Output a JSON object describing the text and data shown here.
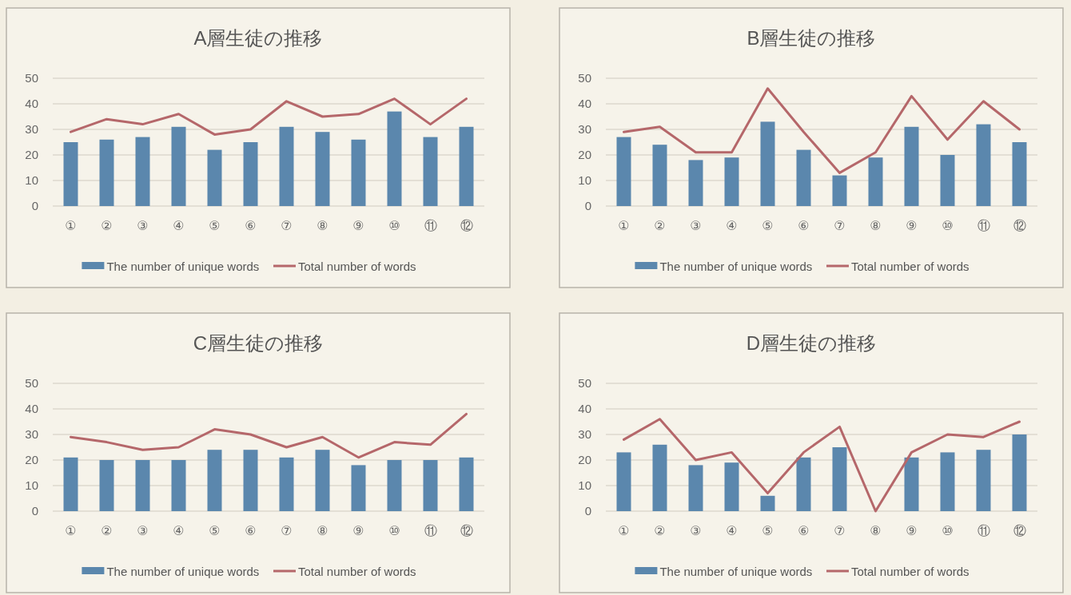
{
  "chart_data": [
    {
      "type": "bar",
      "title": "A層生徒の推移",
      "categories": [
        "①",
        "②",
        "③",
        "④",
        "⑤",
        "⑥",
        "⑦",
        "⑧",
        "⑨",
        "⑩",
        "⑪",
        "⑫"
      ],
      "series": [
        {
          "name": "The number of unique words",
          "color": "#5b87ad",
          "values": [
            25,
            26,
            27,
            31,
            22,
            25,
            31,
            29,
            26,
            37,
            27,
            31
          ]
        },
        {
          "name": "Total number of words",
          "type": "line",
          "color": "#b5676a",
          "values": [
            29,
            34,
            32,
            36,
            28,
            30,
            41,
            35,
            36,
            42,
            32,
            42
          ]
        }
      ],
      "ylim": [
        0,
        50
      ],
      "yticks": [
        0,
        10,
        20,
        30,
        40,
        50
      ],
      "grid": "y",
      "legend": "bottom"
    },
    {
      "type": "bar",
      "title": "B層生徒の推移",
      "categories": [
        "①",
        "②",
        "③",
        "④",
        "⑤",
        "⑥",
        "⑦",
        "⑧",
        "⑨",
        "⑩",
        "⑪",
        "⑫"
      ],
      "series": [
        {
          "name": "The number of unique words",
          "color": "#5b87ad",
          "values": [
            27,
            24,
            18,
            19,
            33,
            22,
            12,
            19,
            31,
            20,
            32,
            25
          ]
        },
        {
          "name": "Total number of words",
          "type": "line",
          "color": "#b5676a",
          "values": [
            29,
            31,
            21,
            21,
            46,
            29,
            13,
            21,
            43,
            26,
            41,
            30
          ]
        }
      ],
      "ylim": [
        0,
        50
      ],
      "yticks": [
        0,
        10,
        20,
        30,
        40,
        50
      ],
      "grid": "y",
      "legend": "bottom"
    },
    {
      "type": "bar",
      "title": "C層生徒の推移",
      "categories": [
        "①",
        "②",
        "③",
        "④",
        "⑤",
        "⑥",
        "⑦",
        "⑧",
        "⑨",
        "⑩",
        "⑪",
        "⑫"
      ],
      "series": [
        {
          "name": "The number of unique words",
          "color": "#5b87ad",
          "values": [
            21,
            20,
            20,
            20,
            24,
            24,
            21,
            24,
            18,
            20,
            20,
            21
          ]
        },
        {
          "name": "Total number of words",
          "type": "line",
          "color": "#b5676a",
          "values": [
            29,
            27,
            24,
            25,
            32,
            30,
            25,
            29,
            21,
            27,
            26,
            38
          ]
        }
      ],
      "ylim": [
        0,
        50
      ],
      "yticks": [
        0,
        10,
        20,
        30,
        40,
        50
      ],
      "grid": "y",
      "legend": "bottom"
    },
    {
      "type": "bar",
      "title": "D層生徒の推移",
      "categories": [
        "①",
        "②",
        "③",
        "④",
        "⑤",
        "⑥",
        "⑦",
        "⑧",
        "⑨",
        "⑩",
        "⑪",
        "⑫"
      ],
      "series": [
        {
          "name": "The number of unique words",
          "color": "#5b87ad",
          "values": [
            23,
            26,
            18,
            19,
            6,
            21,
            25,
            0,
            21,
            23,
            24,
            30
          ]
        },
        {
          "name": "Total number of words",
          "type": "line",
          "color": "#b5676a",
          "values": [
            28,
            36,
            20,
            23,
            7,
            23,
            33,
            0,
            23,
            30,
            29,
            35
          ]
        }
      ],
      "ylim": [
        0,
        50
      ],
      "yticks": [
        0,
        10,
        20,
        30,
        40,
        50
      ],
      "grid": "y",
      "legend": "bottom"
    }
  ]
}
